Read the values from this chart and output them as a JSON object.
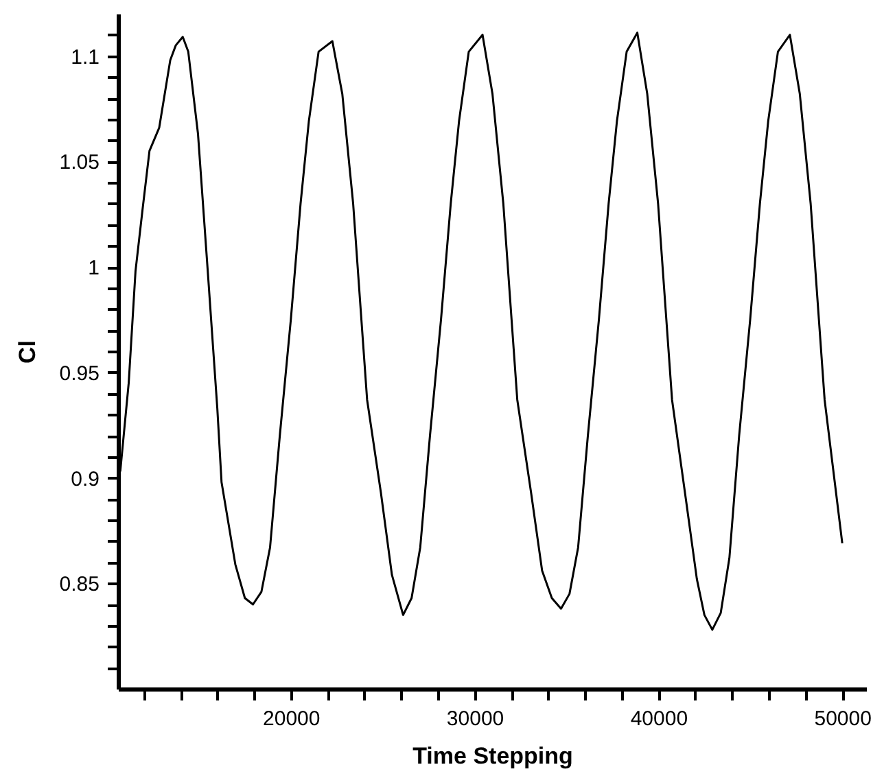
{
  "chart_data": {
    "type": "line",
    "xlabel": "Time Stepping",
    "ylabel": "Cl",
    "x": [
      10720,
      11180,
      11550,
      11930,
      12310,
      12840,
      13440,
      13740,
      14120,
      14420,
      14950,
      15480,
      16000,
      16230,
      16980,
      17500,
      17940,
      18400,
      18870,
      19400,
      20000,
      20530,
      20980,
      21510,
      22260,
      22800,
      23390,
      24150,
      24900,
      25500,
      26110,
      26570,
      27040,
      27570,
      28170,
      28700,
      29150,
      29680,
      30430,
      30970,
      31560,
      32320,
      33070,
      33670,
      34200,
      34700,
      35160,
      35630,
      36160,
      36760,
      37290,
      37740,
      38270,
      38850,
      39390,
      39980,
      40740,
      41490,
      42090,
      42500,
      42930,
      43390,
      43860,
      44390,
      44990,
      45520,
      45970,
      46500,
      47150,
      47690,
      48280,
      49040,
      50000
    ],
    "series": [
      {
        "color": "#000000",
        "values": [
          0.903,
          0.945,
          0.998,
          1.027,
          1.055,
          1.066,
          1.098,
          1.105,
          1.109,
          1.102,
          1.063,
          0.998,
          0.933,
          0.898,
          0.859,
          0.843,
          0.84,
          0.846,
          0.867,
          0.92,
          0.975,
          1.03,
          1.069,
          1.102,
          1.107,
          1.082,
          1.03,
          0.937,
          0.893,
          0.854,
          0.835,
          0.843,
          0.867,
          0.92,
          0.975,
          1.03,
          1.069,
          1.102,
          1.11,
          1.082,
          1.03,
          0.937,
          0.893,
          0.856,
          0.843,
          0.838,
          0.845,
          0.867,
          0.92,
          0.975,
          1.03,
          1.069,
          1.102,
          1.111,
          1.082,
          1.03,
          0.937,
          0.89,
          0.852,
          0.835,
          0.828,
          0.836,
          0.862,
          0.92,
          0.975,
          1.03,
          1.069,
          1.102,
          1.11,
          1.082,
          1.03,
          0.937,
          0.869
        ]
      }
    ],
    "xlim": [
      10600,
      51300
    ],
    "ylim": [
      0.8,
      1.12
    ],
    "xticks": [
      {
        "value": 12000,
        "label": null
      },
      {
        "value": 14000,
        "label": null
      },
      {
        "value": 16000,
        "label": null
      },
      {
        "value": 18000,
        "label": null
      },
      20000,
      {
        "value": 22000,
        "label": null
      },
      {
        "value": 24000,
        "label": null
      },
      {
        "value": 26000,
        "label": null
      },
      {
        "value": 28000,
        "label": null
      },
      30000,
      {
        "value": 32000,
        "label": null
      },
      {
        "value": 34000,
        "label": null
      },
      {
        "value": 36000,
        "label": null
      },
      {
        "value": 38000,
        "label": null
      },
      40000,
      {
        "value": 42000,
        "label": null
      },
      {
        "value": 44000,
        "label": null
      },
      {
        "value": 46000,
        "label": null
      },
      {
        "value": 48000,
        "label": null
      },
      50000
    ],
    "yticks": [
      {
        "value": 0.81,
        "label": null
      },
      {
        "value": 0.82,
        "label": null
      },
      {
        "value": 0.83,
        "label": null
      },
      {
        "value": 0.84,
        "label": null
      },
      0.85,
      {
        "value": 0.86,
        "label": null
      },
      {
        "value": 0.87,
        "label": null
      },
      {
        "value": 0.88,
        "label": null
      },
      {
        "value": 0.89,
        "label": null
      },
      0.9,
      {
        "value": 0.91,
        "label": null
      },
      {
        "value": 0.92,
        "label": null
      },
      {
        "value": 0.93,
        "label": null
      },
      {
        "value": 0.94,
        "label": null
      },
      0.95,
      {
        "value": 0.96,
        "label": null
      },
      {
        "value": 0.97,
        "label": null
      },
      {
        "value": 0.98,
        "label": null
      },
      {
        "value": 0.99,
        "label": null
      },
      1,
      {
        "value": 1.01,
        "label": null
      },
      {
        "value": 1.02,
        "label": null
      },
      {
        "value": 1.03,
        "label": null
      },
      {
        "value": 1.04,
        "label": null
      },
      1.05,
      {
        "value": 1.06,
        "label": null
      },
      {
        "value": 1.07,
        "label": null
      },
      {
        "value": 1.08,
        "label": null
      },
      {
        "value": 1.09,
        "label": null
      },
      1.1,
      {
        "value": 1.11,
        "label": null
      }
    ],
    "grid": false,
    "marker": "none",
    "line_style": "solid"
  }
}
